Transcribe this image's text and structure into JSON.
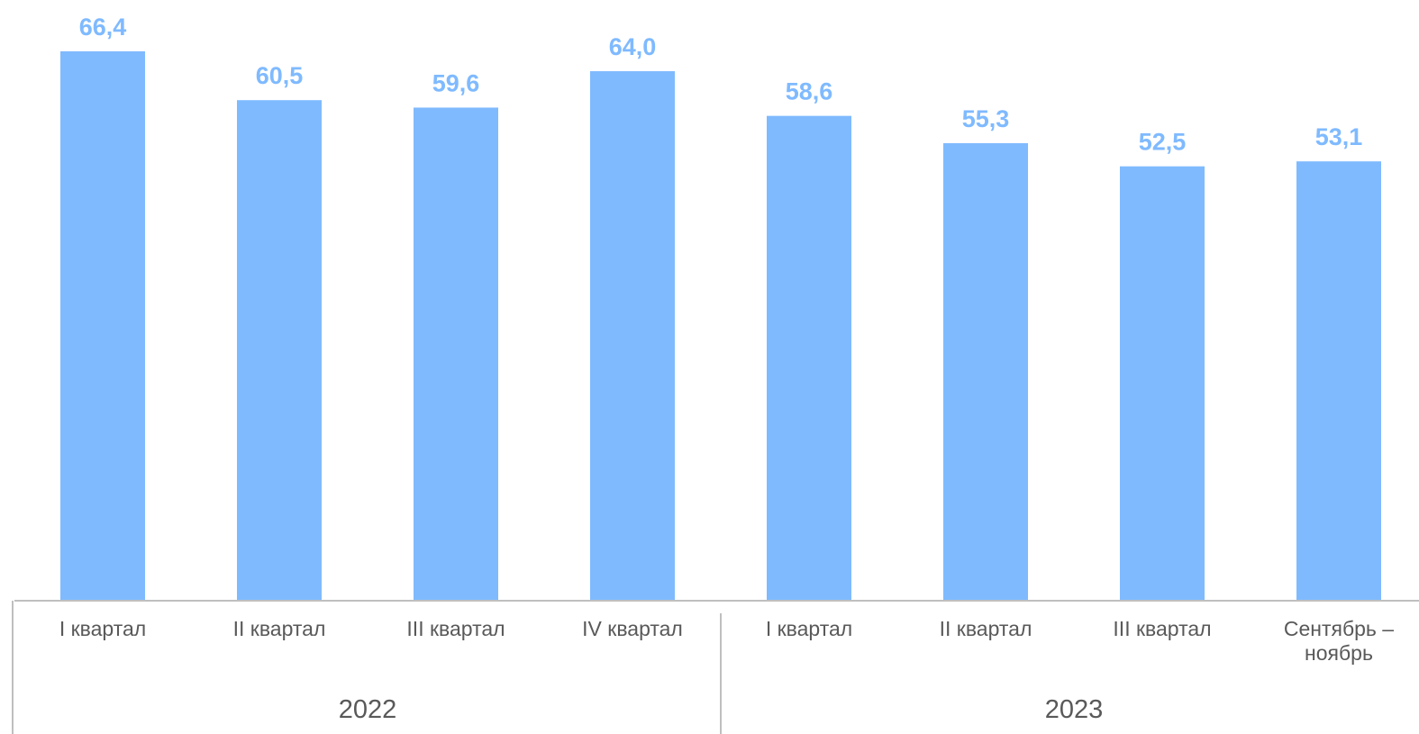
{
  "chart_data": {
    "type": "bar",
    "categories": [
      [
        "I квартал"
      ],
      [
        "II квартал"
      ],
      [
        "III квартал"
      ],
      [
        "IV квартал"
      ],
      [
        "I квартал"
      ],
      [
        "II квартал"
      ],
      [
        "III квартал"
      ],
      [
        "Сентябрь –",
        "ноябрь"
      ]
    ],
    "groups": [
      {
        "label": "2022",
        "count": 4
      },
      {
        "label": "2023",
        "count": 4
      }
    ],
    "values": [
      66.4,
      60.5,
      59.6,
      64.0,
      58.6,
      55.3,
      52.5,
      53.1
    ],
    "value_labels": [
      "66,4",
      "60,5",
      "59,6",
      "64,0",
      "58,6",
      "55,3",
      "52,5",
      "53,1"
    ],
    "ylim": [
      0,
      66.4
    ],
    "grid": false,
    "title": "",
    "xlabel": "",
    "ylabel": "",
    "colors": {
      "bar": "#7fbaff",
      "value_label": "#7fbaff",
      "axis": "#bfbfbf",
      "text": "#595959"
    }
  }
}
